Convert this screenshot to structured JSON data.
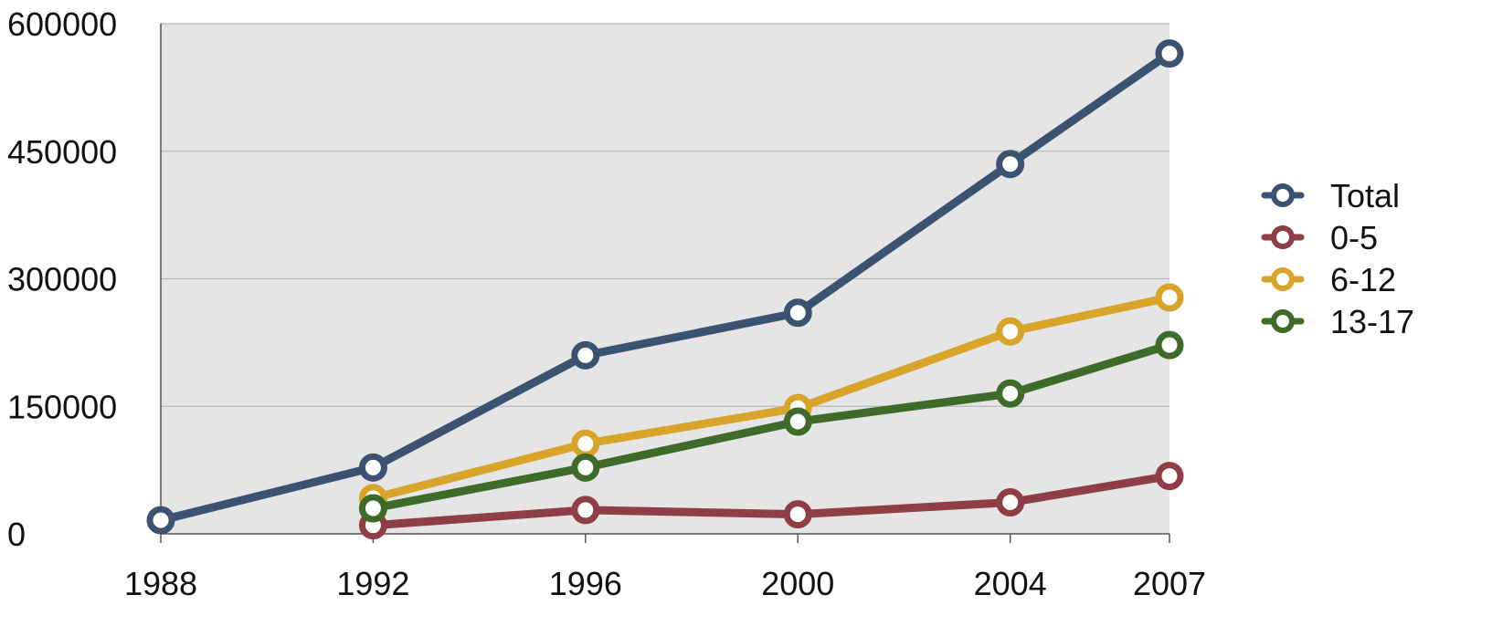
{
  "chart_data": {
    "type": "line",
    "x": [
      1988,
      1992,
      1996,
      2000,
      2004,
      2007
    ],
    "x_tick_labels": [
      "1988",
      "1992",
      "1996",
      "2000",
      "2004",
      "2007"
    ],
    "y_ticks": [
      0,
      150000,
      300000,
      450000,
      600000
    ],
    "y_tick_labels": [
      "0",
      "150000",
      "300000",
      "450000",
      "600000"
    ],
    "ylim": [
      0,
      600000
    ],
    "xlim": [
      1988,
      2007
    ],
    "grid": "horizontal",
    "legend_position": "right",
    "series": [
      {
        "name": "Total",
        "color": "#3b5270",
        "x": [
          1988,
          1992,
          1996,
          2000,
          2004,
          2007
        ],
        "values": [
          16000,
          78000,
          210000,
          260000,
          435000,
          565000
        ]
      },
      {
        "name": "0-5",
        "color": "#8e3e44",
        "x": [
          1992,
          1996,
          2000,
          2004,
          2007
        ],
        "values": [
          10000,
          28000,
          23000,
          37000,
          68000
        ]
      },
      {
        "name": "6-12",
        "color": "#d8a42a",
        "x": [
          1992,
          1996,
          2000,
          2004,
          2007
        ],
        "values": [
          42000,
          106000,
          148000,
          238000,
          278000
        ]
      },
      {
        "name": "13-17",
        "color": "#3e6b2a",
        "x": [
          1992,
          1996,
          2000,
          2004,
          2007
        ],
        "values": [
          30000,
          78000,
          132000,
          165000,
          222000
        ]
      }
    ]
  }
}
